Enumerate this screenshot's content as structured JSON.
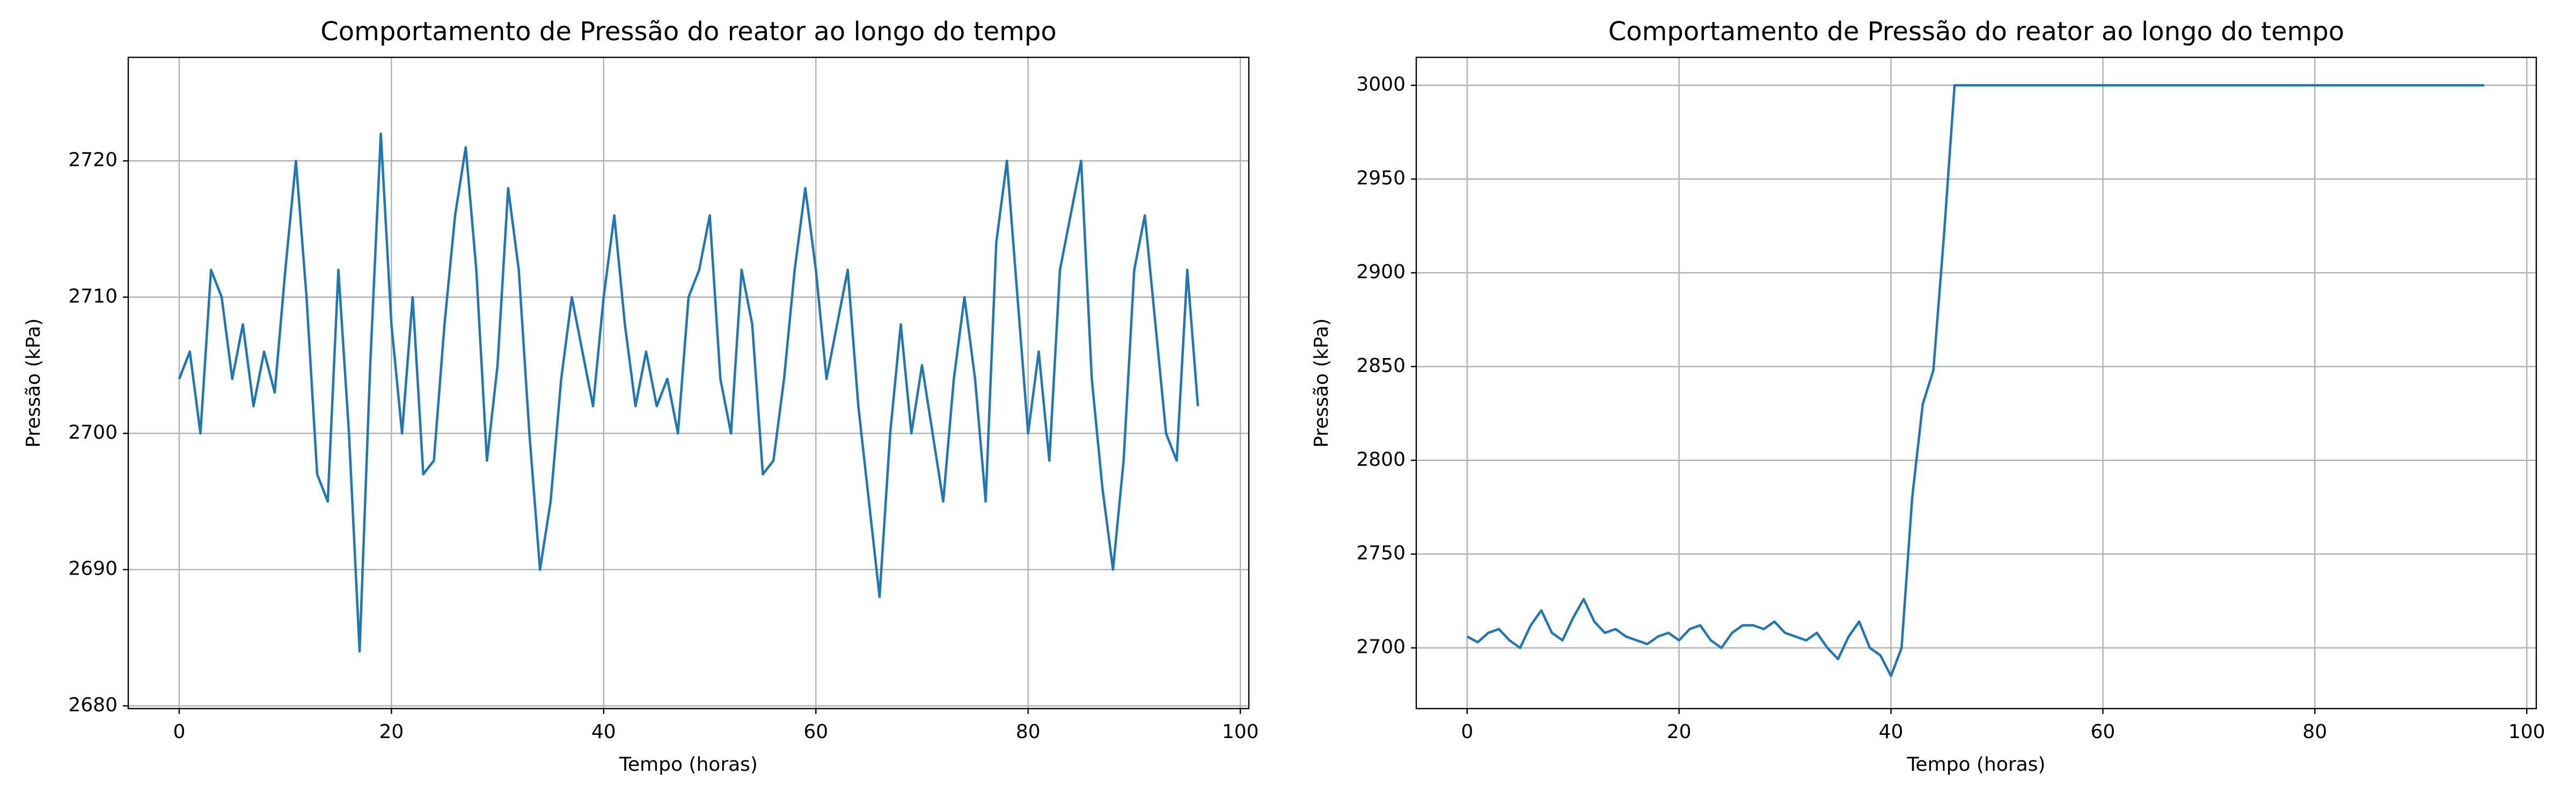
{
  "chart_data": [
    {
      "type": "line",
      "title": "Comportamento de Pressão do reator ao longo do tempo",
      "xlabel": "Tempo (horas)",
      "ylabel": "Pressão (kPa)",
      "x": [
        0,
        1,
        2,
        3,
        4,
        5,
        6,
        7,
        8,
        9,
        10,
        11,
        12,
        13,
        14,
        15,
        16,
        17,
        18,
        19,
        20,
        21,
        22,
        23,
        24,
        25,
        26,
        27,
        28,
        29,
        30,
        31,
        32,
        33,
        34,
        35,
        36,
        37,
        38,
        39,
        40,
        41,
        42,
        43,
        44,
        45,
        46,
        47,
        48,
        49,
        50,
        51,
        52,
        53,
        54,
        55,
        56,
        57,
        58,
        59,
        60,
        61,
        62,
        63,
        64,
        65,
        66,
        67,
        68,
        69,
        70,
        71,
        72,
        73,
        74,
        75,
        76,
        77,
        78,
        79,
        80,
        81,
        82,
        83,
        84,
        85,
        86,
        87,
        88,
        89,
        90,
        91,
        92,
        93,
        94,
        95,
        96
      ],
      "series": [
        {
          "name": "Pressão",
          "color": "#1f77b4",
          "values": [
            2704,
            2706,
            2700,
            2712,
            2710,
            2704,
            2708,
            2702,
            2706,
            2703,
            2712,
            2720,
            2710,
            2697,
            2695,
            2712,
            2700,
            2684,
            2705,
            2722,
            2708,
            2700,
            2710,
            2697,
            2698,
            2708,
            2716,
            2721,
            2712,
            2698,
            2705,
            2718,
            2712,
            2700,
            2690,
            2695,
            2704,
            2710,
            2706,
            2702,
            2710,
            2716,
            2708,
            2702,
            2706,
            2702,
            2704,
            2700,
            2710,
            2712,
            2716,
            2704,
            2700,
            2712,
            2708,
            2697,
            2698,
            2704,
            2712,
            2718,
            2712,
            2704,
            2708,
            2712,
            2702,
            2695,
            2688,
            2700,
            2708,
            2700,
            2705,
            2700,
            2695,
            2704,
            2710,
            2704,
            2695,
            2714,
            2720,
            2710,
            2700,
            2706,
            2698,
            2712,
            2716,
            2720,
            2704,
            2696,
            2690,
            2698,
            2712,
            2716,
            2708,
            2700,
            2698,
            2712,
            2702
          ]
        }
      ],
      "xlim": [
        -4.8,
        100.8
      ],
      "ylim": [
        2679.8,
        2727.6
      ],
      "xticks": [
        0,
        20,
        40,
        60,
        80,
        100
      ],
      "yticks": [
        2680,
        2690,
        2700,
        2710,
        2720
      ],
      "grid": true
    },
    {
      "type": "line",
      "title": "Comportamento de Pressão do reator ao longo do tempo",
      "xlabel": "Tempo (horas)",
      "ylabel": "Pressão (kPa)",
      "x": [
        0,
        1,
        2,
        3,
        4,
        5,
        6,
        7,
        8,
        9,
        10,
        11,
        12,
        13,
        14,
        15,
        16,
        17,
        18,
        19,
        20,
        21,
        22,
        23,
        24,
        25,
        26,
        27,
        28,
        29,
        30,
        31,
        32,
        33,
        34,
        35,
        36,
        37,
        38,
        39,
        40,
        41,
        42,
        43,
        44,
        45,
        46,
        96
      ],
      "series": [
        {
          "name": "Pressão",
          "color": "#1f77b4",
          "values": [
            2706,
            2703,
            2708,
            2710,
            2704,
            2700,
            2712,
            2720,
            2708,
            2704,
            2716,
            2726,
            2714,
            2708,
            2710,
            2706,
            2704,
            2702,
            2706,
            2708,
            2704,
            2710,
            2712,
            2704,
            2700,
            2708,
            2712,
            2712,
            2710,
            2714,
            2708,
            2706,
            2704,
            2708,
            2700,
            2694,
            2706,
            2714,
            2700,
            2696,
            2685,
            2700,
            2780,
            2830,
            2848,
            2920,
            3000,
            3000
          ]
        }
      ],
      "xlim": [
        -4.8,
        100.9
      ],
      "ylim": [
        2667.6,
        3014.9
      ],
      "xticks": [
        0,
        20,
        40,
        60,
        80,
        100
      ],
      "yticks": [
        2700,
        2750,
        2800,
        2850,
        2900,
        2950,
        3000
      ],
      "grid": true
    }
  ]
}
